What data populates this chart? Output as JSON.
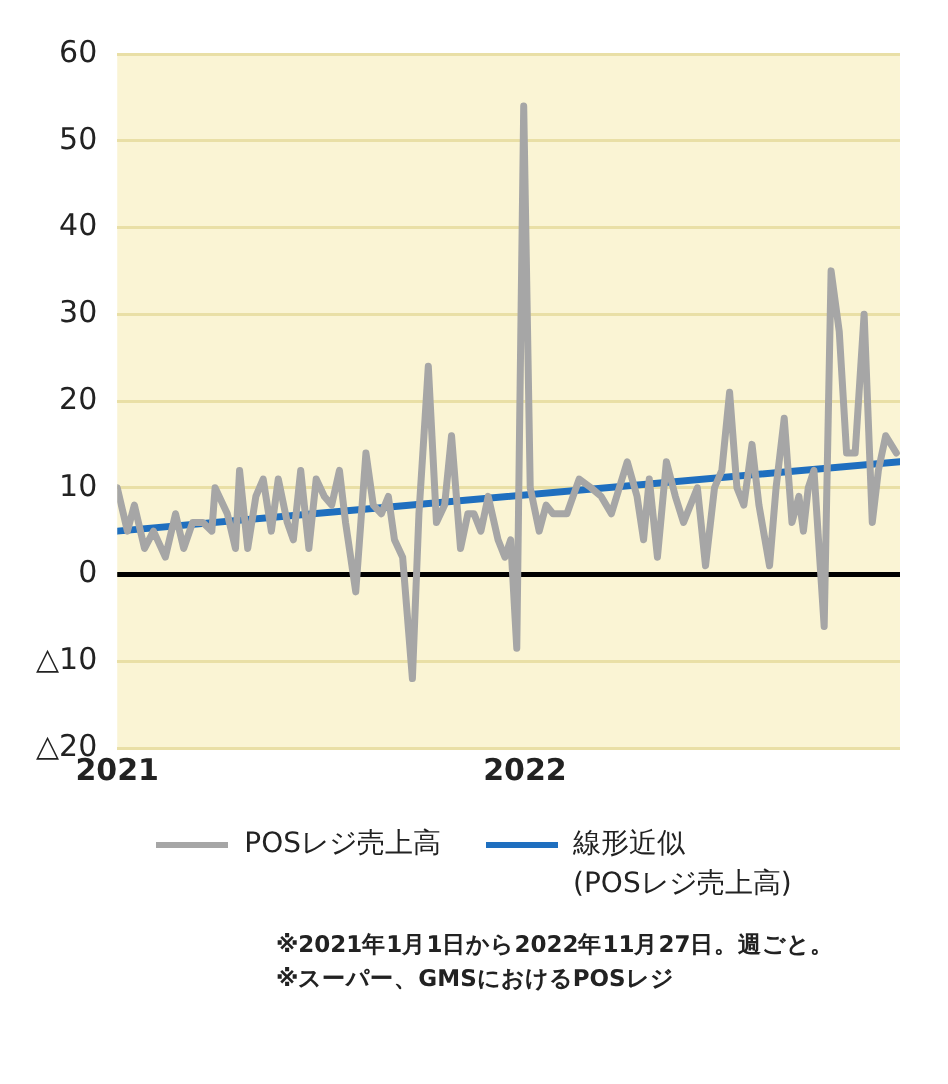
{
  "chart_data": {
    "type": "line",
    "xlim": [
      2021,
      2022.92
    ],
    "xticks": [
      2021,
      2022
    ],
    "ylim": [
      -20,
      60
    ],
    "yticks": [
      {
        "value": -20,
        "label": "△20"
      },
      {
        "value": -10,
        "label": "△10"
      },
      0,
      10,
      20,
      30,
      40,
      50,
      60
    ],
    "grid": "y",
    "legend": "bottom",
    "marker": "none",
    "line_style": "solid",
    "ref_lines": [
      {
        "axis": "y",
        "value": 0,
        "color": "#000000"
      }
    ],
    "series": [
      {
        "name": "POSレジ売上高",
        "color": "#a6a6a6",
        "x": [
          2021.0,
          2021.025,
          2021.042,
          2021.067,
          2021.089,
          2021.118,
          2021.143,
          2021.163,
          2021.185,
          2021.21,
          2021.232,
          2021.24,
          2021.27,
          2021.29,
          2021.3,
          2021.32,
          2021.34,
          2021.358,
          2021.378,
          2021.395,
          2021.417,
          2021.432,
          2021.45,
          2021.47,
          2021.488,
          2021.508,
          2021.526,
          2021.545,
          2021.56,
          2021.585,
          2021.61,
          2021.628,
          2021.648,
          2021.665,
          2021.68,
          2021.7,
          2021.724,
          2021.74,
          2021.755,
          2021.763,
          2021.783,
          2021.803,
          2021.82,
          2021.842,
          2021.86,
          2021.875,
          2021.892,
          2021.91,
          2021.934,
          2021.951,
          2021.965,
          2021.98,
          2021.997,
          2022.013,
          2022.035,
          2022.052,
          2022.069,
          2022.103,
          2022.133,
          2022.162,
          2022.187,
          2022.212,
          2022.251,
          2022.275,
          2022.291,
          2022.305,
          2022.325,
          2022.347,
          2022.369,
          2022.389,
          2022.423,
          2022.443,
          2022.465,
          2022.483,
          2022.502,
          2022.52,
          2022.537,
          2022.557,
          2022.574,
          2022.6,
          2022.616,
          2022.636,
          2022.655,
          2022.672,
          2022.683,
          2022.695,
          2022.709,
          2022.734,
          2022.751,
          2022.771,
          2022.789,
          2022.81,
          2022.832,
          2022.852,
          2022.867,
          2022.885,
          2022.911
        ],
        "values": [
          10,
          5,
          8,
          3,
          5,
          2,
          7,
          3,
          6,
          6,
          5,
          10,
          7,
          3,
          12,
          3,
          9,
          11,
          5,
          11,
          6,
          4,
          12,
          3,
          11,
          9,
          8,
          12,
          6,
          -2,
          14,
          8,
          7,
          9,
          4,
          2,
          -12,
          7,
          18,
          24,
          6,
          8,
          16,
          3,
          7,
          7,
          5,
          9,
          4,
          2,
          4,
          -8.5,
          54,
          10,
          5,
          8,
          7,
          7,
          11,
          10,
          9,
          7,
          13,
          9,
          4,
          11,
          2,
          13,
          9,
          6,
          10,
          1,
          10,
          12,
          21,
          10,
          8,
          15,
          8,
          1,
          10,
          18,
          6,
          9,
          5,
          10,
          12,
          -6,
          35,
          28,
          14,
          14,
          30,
          6,
          12,
          16,
          14
        ]
      },
      {
        "name": "線形近似\n(POSレジ売上高)",
        "color": "#1f6fbf",
        "x": [
          2021,
          2022.92
        ],
        "values": [
          5,
          13
        ]
      }
    ],
    "annotations": [
      "※2021年1月1日から2022年11月27日。週ごと。",
      "※スーパー、GMSにおけるPOSレジ"
    ]
  }
}
